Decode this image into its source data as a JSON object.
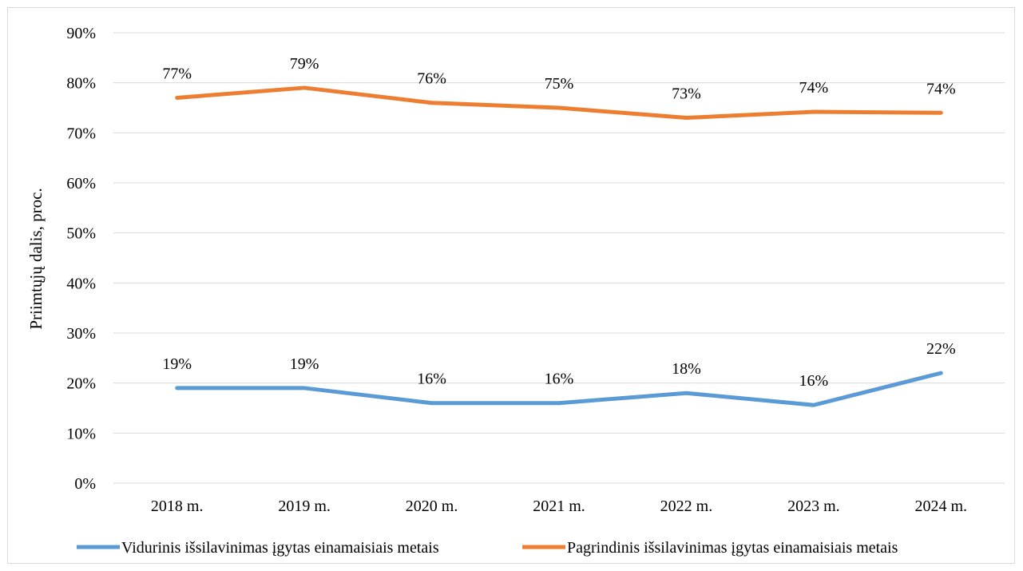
{
  "chart_data": {
    "type": "line",
    "title": "",
    "xlabel": "",
    "ylabel": "Priimtųjų dalis, proc.",
    "ylim": [
      0,
      90
    ],
    "y_ticks": [
      "0%",
      "10%",
      "20%",
      "30%",
      "40%",
      "50%",
      "60%",
      "70%",
      "80%",
      "90%"
    ],
    "categories": [
      "2018 m.",
      "2019 m.",
      "2020 m.",
      "2021 m.",
      "2022 m.",
      "2023 m.",
      "2024 m."
    ],
    "grid": "horizontal",
    "legend_position": "bottom",
    "series": [
      {
        "name": "Vidurinis išsilavinimas įgytas einamaisiais metais",
        "color": "#5b9bd5",
        "values": [
          19,
          19,
          16,
          16,
          18,
          15.6,
          22
        ],
        "labels": [
          "19%",
          "19%",
          "16%",
          "16%",
          "18%",
          "16%",
          "22%"
        ]
      },
      {
        "name": "Pagrindinis išsilavinimas įgytas einamaisiais metais",
        "color": "#ed7d31",
        "values": [
          77,
          79,
          76,
          75,
          73,
          74.2,
          74
        ],
        "labels": [
          "77%",
          "79%",
          "76%",
          "75%",
          "73%",
          "74%",
          "74%"
        ]
      }
    ]
  }
}
